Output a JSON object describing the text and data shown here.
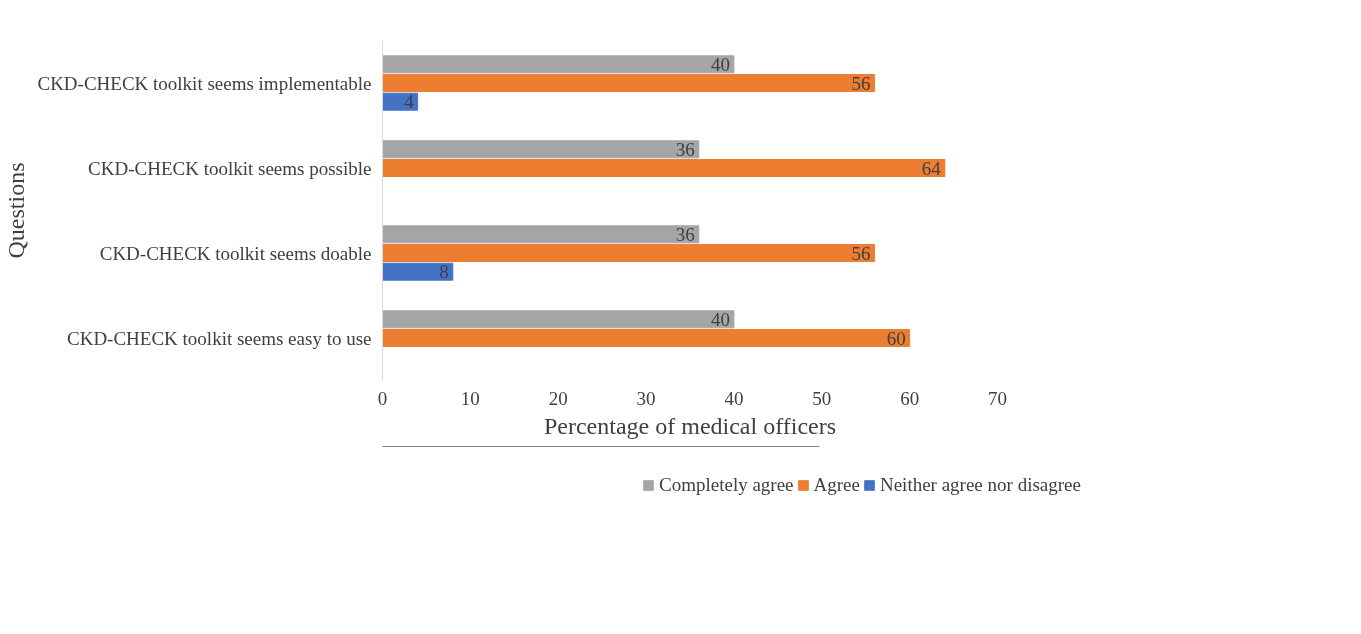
{
  "chart_data": {
    "type": "bar",
    "orientation": "horizontal",
    "xlabel": "Percentage of medical officers",
    "ylabel": "Questions",
    "categories": [
      "CKD-CHECK toolkit seems implementable",
      "CKD-CHECK toolkit seems possible",
      "CKD-CHECK toolkit seems doable",
      "CKD-CHECK toolkit seems easy to use"
    ],
    "series": [
      {
        "name": "Completely agree",
        "color": "#a5a5a5",
        "values": [
          40,
          36,
          36,
          40
        ]
      },
      {
        "name": "Agree",
        "color": "#ed7d31",
        "values": [
          56,
          64,
          56,
          60
        ]
      },
      {
        "name": "Neither agree nor disagree",
        "color": "#4472c4",
        "values": [
          4,
          null,
          8,
          null
        ]
      }
    ],
    "xlim": [
      0,
      70
    ],
    "xticks": [
      0,
      10,
      20,
      30,
      40,
      50,
      60,
      70
    ],
    "grid": false,
    "legend": "bottom",
    "data_labels": true
  }
}
